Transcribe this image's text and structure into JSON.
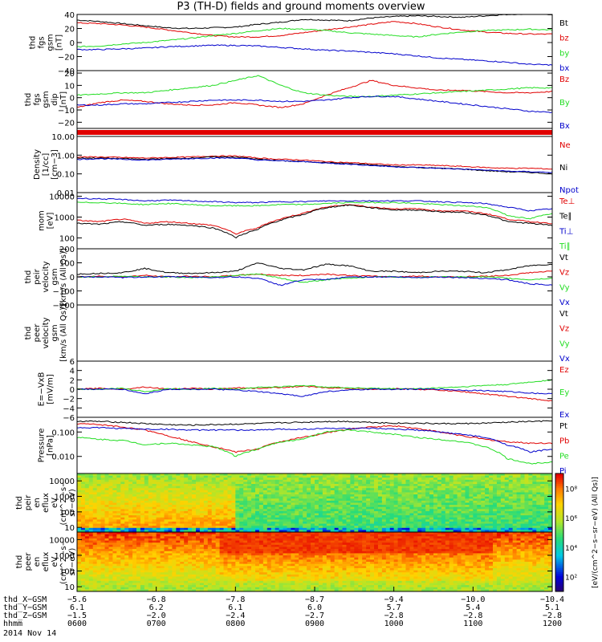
{
  "title": "P3 (TH-D) fields and ground moments overview",
  "date_label": "2014 Nov 14",
  "colors": {
    "black": "#000000",
    "red": "#e00000",
    "green": "#22dd22",
    "blue": "#0000cc"
  },
  "chart_data": [
    {
      "id": "p1",
      "type": "line",
      "ylabel": [
        "thd",
        "fgs",
        "gsm",
        "[nT]"
      ],
      "ylim": [
        -40,
        40
      ],
      "yticks": [
        "40",
        "20",
        "0",
        "−20",
        "−40"
      ],
      "yticks_v": [
        40,
        20,
        0,
        -20,
        -40
      ],
      "series": [
        {
          "name": "Bt",
          "color": "black",
          "values": [
            32,
            30,
            27,
            24,
            21,
            20,
            21,
            22,
            26,
            29,
            33,
            32,
            31,
            35,
            37,
            38,
            37,
            36,
            38,
            40,
            41,
            40
          ]
        },
        {
          "name": "bz",
          "color": "red",
          "values": [
            28,
            27,
            25,
            22,
            18,
            14,
            10,
            8,
            8,
            10,
            14,
            18,
            22,
            26,
            30,
            27,
            22,
            18,
            15,
            13,
            12,
            12
          ]
        },
        {
          "name": "by",
          "color": "green",
          "values": [
            -6,
            -5,
            -2,
            0,
            3,
            6,
            10,
            13,
            17,
            20,
            19,
            17,
            14,
            12,
            10,
            8,
            12,
            15,
            17,
            18,
            19,
            18
          ]
        },
        {
          "name": "bx",
          "color": "blue",
          "values": [
            -10,
            -10,
            -9,
            -8,
            -6,
            -5,
            -4,
            -4,
            -5,
            -7,
            -9,
            -11,
            -12,
            -14,
            -16,
            -19,
            -22,
            -24,
            -26,
            -28,
            -31,
            -32
          ]
        }
      ]
    },
    {
      "id": "p2",
      "type": "line",
      "ylabel": [
        "thd",
        "fgs",
        "gsm",
        "dip",
        "[nT]"
      ],
      "ylim": [
        -25,
        22
      ],
      "yticks": [
        "20",
        "10",
        "0",
        "−10",
        "−20"
      ],
      "yticks_v": [
        20,
        10,
        0,
        -10,
        -20
      ],
      "series": [
        {
          "name": "Bz",
          "color": "red",
          "values": [
            -8,
            -4,
            -2,
            -3,
            -5,
            -6,
            -6,
            -4,
            -6,
            -8,
            -5,
            2,
            8,
            14,
            10,
            8,
            6,
            6,
            5,
            4,
            4,
            5
          ]
        },
        {
          "name": "By",
          "color": "green",
          "values": [
            2,
            3,
            4,
            4,
            6,
            8,
            10,
            14,
            18,
            10,
            4,
            2,
            1,
            1,
            2,
            3,
            4,
            5,
            6,
            7,
            8,
            8
          ]
        },
        {
          "name": "Bx",
          "color": "blue",
          "values": [
            -6,
            -6,
            -5,
            -5,
            -4,
            -3,
            -2,
            -2,
            -2,
            -3,
            -3,
            -2,
            0,
            1,
            1,
            -1,
            -3,
            -5,
            -7,
            -9,
            -11,
            -12
          ]
        }
      ]
    },
    {
      "id": "p3",
      "type": "bar",
      "ylabel": [],
      "series": [
        {
          "name": "flag",
          "color": "red",
          "values": [
            1
          ]
        }
      ]
    },
    {
      "id": "p4",
      "type": "line",
      "log": true,
      "ylabel": [
        "Density",
        "[1/cc]",
        "[cm−3]"
      ],
      "ylim": [
        0.01,
        10
      ],
      "yticks": [
        "10.00",
        "1.00",
        "0.10",
        "0.01"
      ],
      "yticks_v": [
        10,
        1,
        0.1,
        0.01
      ],
      "series": [
        {
          "name": "Ne",
          "color": "red",
          "values": [
            0.8,
            0.8,
            0.75,
            0.7,
            0.75,
            0.8,
            0.9,
            0.9,
            0.7,
            0.6,
            0.55,
            0.45,
            0.4,
            0.35,
            0.3,
            0.3,
            0.28,
            0.25,
            0.22,
            0.2,
            0.2,
            0.18
          ]
        },
        {
          "name": "Ni",
          "color": "black",
          "values": [
            0.7,
            0.7,
            0.65,
            0.6,
            0.65,
            0.7,
            0.8,
            0.8,
            0.6,
            0.5,
            0.45,
            0.4,
            0.35,
            0.3,
            0.25,
            0.22,
            0.2,
            0.18,
            0.15,
            0.13,
            0.12,
            0.1
          ]
        },
        {
          "name": "Npot",
          "color": "blue",
          "values": [
            0.6,
            0.65,
            0.6,
            0.55,
            0.6,
            0.65,
            0.7,
            0.7,
            0.55,
            0.5,
            0.45,
            0.38,
            0.33,
            0.28,
            0.24,
            0.22,
            0.2,
            0.18,
            0.16,
            0.14,
            0.13,
            0.12
          ]
        }
      ]
    },
    {
      "id": "p5",
      "type": "line",
      "log": true,
      "ylabel": [
        "mom",
        "[eV]"
      ],
      "ylim": [
        30,
        15000
      ],
      "yticks": [
        "10000",
        "1000",
        "100"
      ],
      "yticks_v": [
        10000,
        1000,
        100
      ],
      "series": [
        {
          "name": "Te⊥",
          "color": "red",
          "values": [
            700,
            600,
            800,
            500,
            600,
            500,
            400,
            150,
            300,
            800,
            1500,
            3000,
            4000,
            3000,
            2500,
            2500,
            2000,
            2000,
            1500,
            800,
            600,
            500
          ]
        },
        {
          "name": "Te∥",
          "color": "black",
          "values": [
            500,
            450,
            600,
            400,
            450,
            400,
            300,
            100,
            250,
            700,
            1300,
            2800,
            3800,
            2800,
            2200,
            2200,
            1800,
            1700,
            1300,
            600,
            500,
            400
          ]
        },
        {
          "name": "Ti⊥",
          "color": "blue",
          "values": [
            8000,
            7500,
            7000,
            6000,
            6500,
            6000,
            5500,
            5000,
            5000,
            5500,
            5500,
            6000,
            6000,
            6000,
            6000,
            6000,
            5500,
            5000,
            4500,
            3000,
            2000,
            2500
          ]
        },
        {
          "name": "Ti∥",
          "color": "green",
          "values": [
            5000,
            5000,
            4500,
            4000,
            4500,
            4000,
            3500,
            3500,
            3500,
            4000,
            4000,
            4500,
            5000,
            5000,
            5000,
            4500,
            4000,
            3500,
            3000,
            1200,
            800,
            1500
          ]
        }
      ]
    },
    {
      "id": "p6",
      "type": "line",
      "ylabel": [
        "thd",
        "peir",
        "velocity",
        "gsm",
        "[km/s (All Qs)]"
      ],
      "ylim": [
        -200,
        200
      ],
      "yticks": [
        "200",
        "100",
        "0",
        "−100",
        "−200"
      ],
      "yticks_v": [
        200,
        100,
        0,
        -100,
        -200
      ],
      "series": [
        {
          "name": "Vt",
          "color": "black",
          "values": [
            20,
            25,
            30,
            60,
            30,
            25,
            30,
            40,
            100,
            60,
            50,
            90,
            80,
            40,
            40,
            30,
            40,
            40,
            30,
            50,
            80,
            90
          ]
        },
        {
          "name": "Vz",
          "color": "red",
          "values": [
            0,
            5,
            0,
            10,
            0,
            5,
            0,
            10,
            20,
            10,
            10,
            20,
            10,
            5,
            0,
            5,
            0,
            0,
            5,
            10,
            30,
            40
          ]
        },
        {
          "name": "Vy",
          "color": "green",
          "values": [
            0,
            0,
            5,
            0,
            0,
            -5,
            0,
            10,
            20,
            -10,
            -40,
            -20,
            -10,
            0,
            0,
            -5,
            0,
            0,
            0,
            -10,
            -20,
            -10
          ]
        },
        {
          "name": "Vx",
          "color": "blue",
          "values": [
            0,
            0,
            -5,
            0,
            0,
            0,
            -5,
            0,
            -10,
            -60,
            -20,
            -20,
            0,
            0,
            0,
            -5,
            0,
            -5,
            -10,
            -20,
            -50,
            -60
          ]
        }
      ]
    },
    {
      "id": "p7",
      "type": "line",
      "ylabel": [
        "thd",
        "peer",
        "velocity",
        "gsm",
        "[km/s (All Qs)]"
      ],
      "ylim": [
        -200,
        200
      ],
      "yticks": [],
      "yticks_v": [],
      "series": [
        {
          "name": "Vt",
          "color": "black",
          "values": []
        },
        {
          "name": "Vz",
          "color": "red",
          "values": []
        },
        {
          "name": "Vy",
          "color": "green",
          "values": []
        },
        {
          "name": "Vx",
          "color": "blue",
          "values": []
        }
      ]
    },
    {
      "id": "p8",
      "type": "line",
      "ylabel": [
        "E=−VxB",
        "[mV/m]"
      ],
      "ylim": [
        -6,
        6
      ],
      "yticks": [
        "6",
        "4",
        "2",
        "0",
        "−2",
        "−4",
        "−6"
      ],
      "yticks_v": [
        6,
        4,
        2,
        0,
        -2,
        -4,
        -6
      ],
      "series": [
        {
          "name": "Ez",
          "color": "red",
          "values": [
            0,
            0.2,
            0,
            0.5,
            0,
            0.2,
            0,
            0.3,
            0.2,
            0.4,
            0.6,
            0.3,
            0.2,
            0,
            0.1,
            0,
            -0.2,
            -0.5,
            -1,
            -1.5,
            -2,
            -2.5
          ]
        },
        {
          "name": "Ey",
          "color": "green",
          "values": [
            0,
            0,
            0.2,
            -0.5,
            0.1,
            0,
            0.2,
            0,
            0.4,
            0.5,
            0.8,
            0.5,
            0.3,
            0.2,
            0.1,
            0.1,
            0.3,
            0.5,
            0.8,
            1,
            1.5,
            2
          ]
        },
        {
          "name": "Ex",
          "color": "blue",
          "values": [
            0,
            0,
            0,
            -1,
            0,
            0,
            0,
            -0.2,
            -0.5,
            -1,
            -1.5,
            -0.5,
            -0.2,
            0,
            0,
            0,
            0,
            -0.2,
            -0.3,
            -0.5,
            -0.8,
            -1
          ]
        }
      ]
    },
    {
      "id": "p9",
      "type": "line",
      "log": true,
      "ylabel": [
        "Pressure",
        "[nPa]"
      ],
      "ylim": [
        0.002,
        0.4
      ],
      "yticks": [
        "0.100",
        "0.010"
      ],
      "yticks_v": [
        0.1,
        0.01
      ],
      "series": [
        {
          "name": "Pt",
          "color": "black",
          "values": [
            0.28,
            0.27,
            0.25,
            0.22,
            0.2,
            0.19,
            0.2,
            0.21,
            0.22,
            0.24,
            0.25,
            0.27,
            0.27,
            0.25,
            0.23,
            0.23,
            0.22,
            0.22,
            0.23,
            0.25,
            0.27,
            0.28
          ]
        },
        {
          "name": "Pb",
          "color": "red",
          "values": [
            0.22,
            0.2,
            0.16,
            0.12,
            0.07,
            0.04,
            0.025,
            0.015,
            0.02,
            0.04,
            0.06,
            0.09,
            0.13,
            0.16,
            0.18,
            0.14,
            0.1,
            0.07,
            0.05,
            0.04,
            0.035,
            0.035
          ]
        },
        {
          "name": "Pe",
          "color": "green",
          "values": [
            0.06,
            0.05,
            0.045,
            0.03,
            0.035,
            0.03,
            0.025,
            0.01,
            0.02,
            0.04,
            0.05,
            0.1,
            0.12,
            0.1,
            0.08,
            0.06,
            0.05,
            0.04,
            0.025,
            0.008,
            0.005,
            0.006
          ]
        },
        {
          "name": "Pi",
          "color": "blue",
          "values": [
            0.15,
            0.15,
            0.14,
            0.13,
            0.13,
            0.12,
            0.12,
            0.12,
            0.12,
            0.13,
            0.13,
            0.14,
            0.14,
            0.14,
            0.13,
            0.12,
            0.1,
            0.08,
            0.06,
            0.03,
            0.015,
            0.02
          ]
        }
      ]
    },
    {
      "id": "p10",
      "type": "heatmap",
      "log": true,
      "ylabel": [
        "thd",
        "peir",
        "en",
        "eflux",
        "eV",
        "(cm^2−s−",
        "sr−eV)"
      ],
      "ylim": [
        5,
        30000
      ],
      "yticks": [
        "10000",
        "1000",
        "100",
        "10"
      ],
      "yticks_v": [
        10000,
        1000,
        100,
        10
      ]
    },
    {
      "id": "p11",
      "type": "heatmap",
      "log": true,
      "ylabel": [
        "thd",
        "peer",
        "en",
        "eflux",
        "eV",
        "(cm^2−s−",
        "sr−eV)"
      ],
      "ylim": [
        5,
        30000
      ],
      "yticks": [
        "10000",
        "1000",
        "100",
        "10"
      ],
      "yticks_v": [
        10000,
        1000,
        100,
        10
      ]
    }
  ],
  "colorbar": {
    "label": "[eV/(cm^2−s−sr−eV) (All Qs)]",
    "ticks": [
      "10⁸",
      "10⁶",
      "10⁴",
      "10²"
    ],
    "ticks_v": [
      8,
      6,
      4,
      2
    ],
    "range": [
      1,
      9
    ]
  },
  "x_axis": {
    "row_labels": [
      "thd_X−GSM",
      "thd_Y−GSM",
      "thd_Z−GSM",
      "hhmm"
    ],
    "ticks": [
      {
        "x": "−5.6",
        "y": "6.1",
        "z": "−1.5",
        "t": "0600"
      },
      {
        "x": "−6.8",
        "y": "6.2",
        "z": "−2.0",
        "t": "0700"
      },
      {
        "x": "−7.8",
        "y": "6.1",
        "z": "−2.4",
        "t": "0800"
      },
      {
        "x": "−8.7",
        "y": "6.0",
        "z": "−2.7",
        "t": "0900"
      },
      {
        "x": "−9.4",
        "y": "5.7",
        "z": "−2.8",
        "t": "1000"
      },
      {
        "x": "−10.0",
        "y": "5.4",
        "z": "−2.8",
        "t": "1100"
      },
      {
        "x": "−10.4",
        "y": "5.1",
        "z": "−2.8",
        "t": "1200"
      }
    ]
  }
}
